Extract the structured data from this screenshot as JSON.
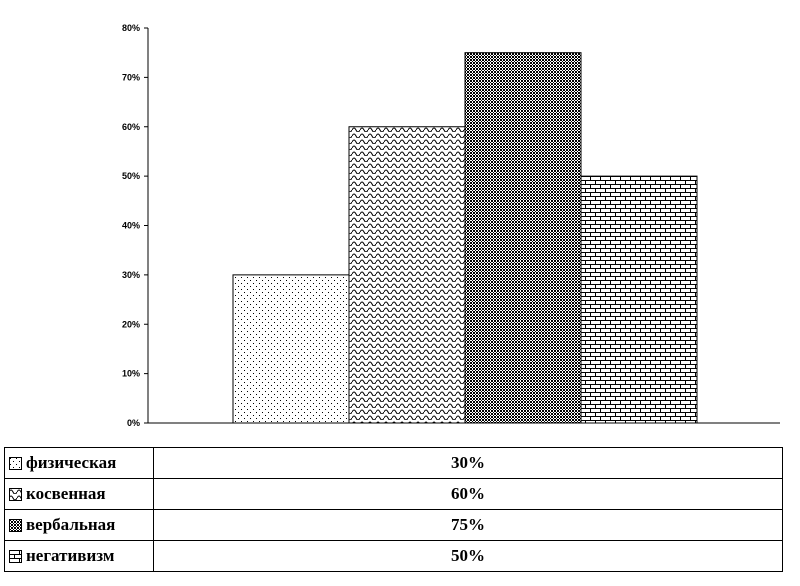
{
  "chart_data": {
    "type": "bar",
    "title": "",
    "xlabel": "",
    "ylabel": "",
    "ylim": [
      0,
      80
    ],
    "y_ticks": [
      "0%",
      "10%",
      "20%",
      "30%",
      "40%",
      "50%",
      "60%",
      "70%",
      "80%"
    ],
    "grid": false,
    "legend": "data-table-below",
    "categories": [
      "физическая",
      "косвенная",
      "вербальная",
      "негативизм"
    ],
    "values": [
      30,
      60,
      75,
      50
    ],
    "patterns": [
      "dots",
      "waves",
      "crosshatch",
      "bricks"
    ]
  },
  "table": {
    "rows": [
      {
        "label": "физическая",
        "value": "30%"
      },
      {
        "label": "косвенная",
        "value": "60%"
      },
      {
        "label": "вербальная",
        "value": "75%"
      },
      {
        "label": "негативизм",
        "value": "50%"
      }
    ]
  }
}
